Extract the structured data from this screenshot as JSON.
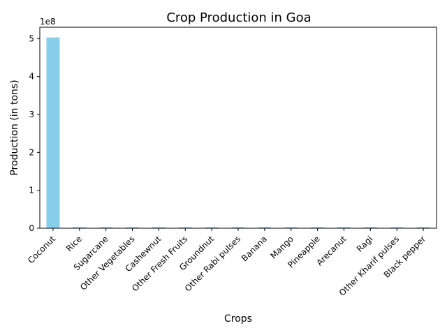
{
  "chart_data": {
    "type": "bar",
    "title": "Crop Production in Goa",
    "xlabel": "Crops",
    "ylabel": "Production (in tons)",
    "y_offset_text": "1e8",
    "categories": [
      "Coconut",
      "Rice",
      "Sugarcane",
      "Other Vegetables",
      "Cashewnut",
      "Other Fresh Fruits",
      "Groundnut",
      "Other  Rabi pulses",
      "Banana",
      "Mango",
      "Pineapple",
      "Arecanut",
      "Ragi",
      "Other Kharif pulses",
      "Black pepper"
    ],
    "values": [
      503000000,
      1200000,
      900000,
      700000,
      500000,
      400000,
      300000,
      250000,
      200000,
      100000,
      80000,
      60000,
      30000,
      20000,
      5000
    ],
    "ylim": [
      0,
      530000000
    ],
    "yticks": [
      0,
      100000000,
      200000000,
      300000000,
      400000000,
      500000000
    ],
    "ytick_labels": [
      "0",
      "1",
      "2",
      "3",
      "4",
      "5"
    ],
    "grid": false,
    "legend": "none",
    "bar_color": "#87ceeb",
    "small_bar_edge_color": "#1f77b4"
  }
}
